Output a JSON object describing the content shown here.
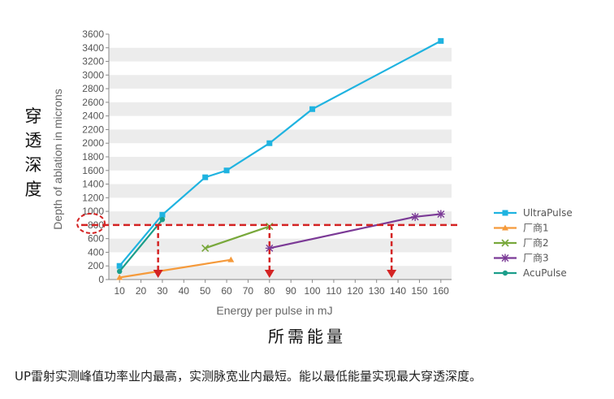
{
  "chart_data": {
    "type": "line",
    "xlabel": "Energy per pulse in mJ",
    "ylabel": "Depth of ablation in microns",
    "xlim": [
      5,
      165
    ],
    "ylim": [
      0,
      3600
    ],
    "xticks": [
      "10",
      "20",
      "30",
      "40",
      "50",
      "60",
      "70",
      "80",
      "90",
      "100",
      "110",
      "120",
      "130",
      "140",
      "150",
      "160"
    ],
    "yticks": [
      "0",
      "200",
      "400",
      "600",
      "800",
      "1000",
      "1200",
      "1400",
      "1600",
      "1800",
      "2000",
      "2200",
      "2400",
      "2600",
      "2800",
      "3000",
      "3200",
      "3400",
      "3600"
    ],
    "grid": "horizontal bands",
    "legend_position": "right",
    "series": [
      {
        "name": "UltraPulse",
        "color": "#1fb3e0",
        "marker": "square",
        "x": [
          10,
          30,
          50,
          60,
          80,
          100,
          160
        ],
        "y": [
          200,
          950,
          1500,
          1600,
          2000,
          2500,
          3500
        ]
      },
      {
        "name": "厂商1",
        "color": "#f59a3b",
        "marker": "triangle",
        "x": [
          10,
          62
        ],
        "y": [
          30,
          290
        ]
      },
      {
        "name": "厂商2",
        "color": "#78a83b",
        "marker": "x",
        "x": [
          50,
          80
        ],
        "y": [
          460,
          780
        ]
      },
      {
        "name": "厂商3",
        "color": "#7b3a96",
        "marker": "star",
        "x": [
          80,
          148,
          160
        ],
        "y": [
          460,
          920,
          960
        ]
      },
      {
        "name": "AcuPulse",
        "color": "#1b9e8a",
        "marker": "circle",
        "x": [
          10,
          30
        ],
        "y": [
          120,
          880
        ]
      }
    ],
    "annotations": {
      "reference_y": 800,
      "arrow_x": [
        28,
        80,
        137
      ],
      "ylabel_cn": "穿透深度",
      "xlabel_cn": "所需能量",
      "caption": "UP雷射实测峰值功率业内最高，实测脉宽业内最短。能以最低能量实现最大穿透深度。"
    }
  }
}
